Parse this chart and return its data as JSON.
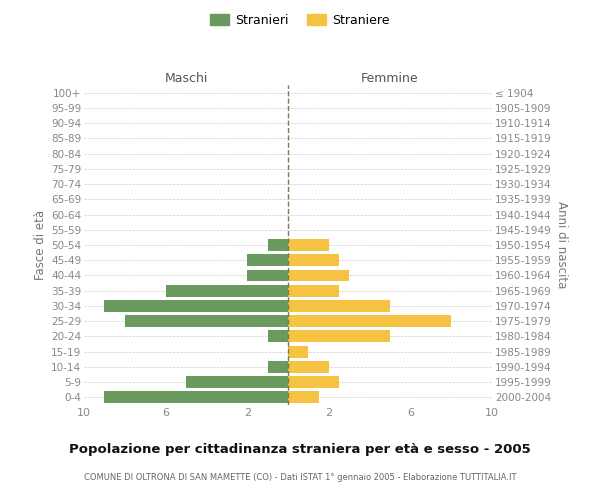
{
  "age_groups": [
    "100+",
    "95-99",
    "90-94",
    "85-89",
    "80-84",
    "75-79",
    "70-74",
    "65-69",
    "60-64",
    "55-59",
    "50-54",
    "45-49",
    "40-44",
    "35-39",
    "30-34",
    "25-29",
    "20-24",
    "15-19",
    "10-14",
    "5-9",
    "0-4"
  ],
  "birth_years": [
    "≤ 1904",
    "1905-1909",
    "1910-1914",
    "1915-1919",
    "1920-1924",
    "1925-1929",
    "1930-1934",
    "1935-1939",
    "1940-1944",
    "1945-1949",
    "1950-1954",
    "1955-1959",
    "1960-1964",
    "1965-1969",
    "1970-1974",
    "1975-1979",
    "1980-1984",
    "1985-1989",
    "1990-1994",
    "1995-1999",
    "2000-2004"
  ],
  "males": [
    0,
    0,
    0,
    0,
    0,
    0,
    0,
    0,
    0,
    0,
    1,
    2,
    2,
    6,
    9,
    8,
    1,
    0,
    1,
    5,
    9
  ],
  "females": [
    0,
    0,
    0,
    0,
    0,
    0,
    0,
    0,
    0,
    0,
    2,
    2.5,
    3,
    2.5,
    5,
    8,
    5,
    1,
    2,
    2.5,
    1.5
  ],
  "male_color": "#6b9a5e",
  "female_color": "#f5c242",
  "center_line_color": "#7a7a55",
  "title": "Popolazione per cittadinanza straniera per età e sesso - 2005",
  "subtitle": "COMUNE DI OLTRONA DI SAN MAMETTE (CO) - Dati ISTAT 1° gennaio 2005 - Elaborazione TUTTITALIA.IT",
  "ylabel_left": "Fasce di età",
  "ylabel_right": "Anni di nascita",
  "legend_male": "Stranieri",
  "legend_female": "Straniere",
  "header_male": "Maschi",
  "header_female": "Femmine",
  "xlim": 10,
  "background_color": "#ffffff",
  "grid_color": "#cccccc"
}
